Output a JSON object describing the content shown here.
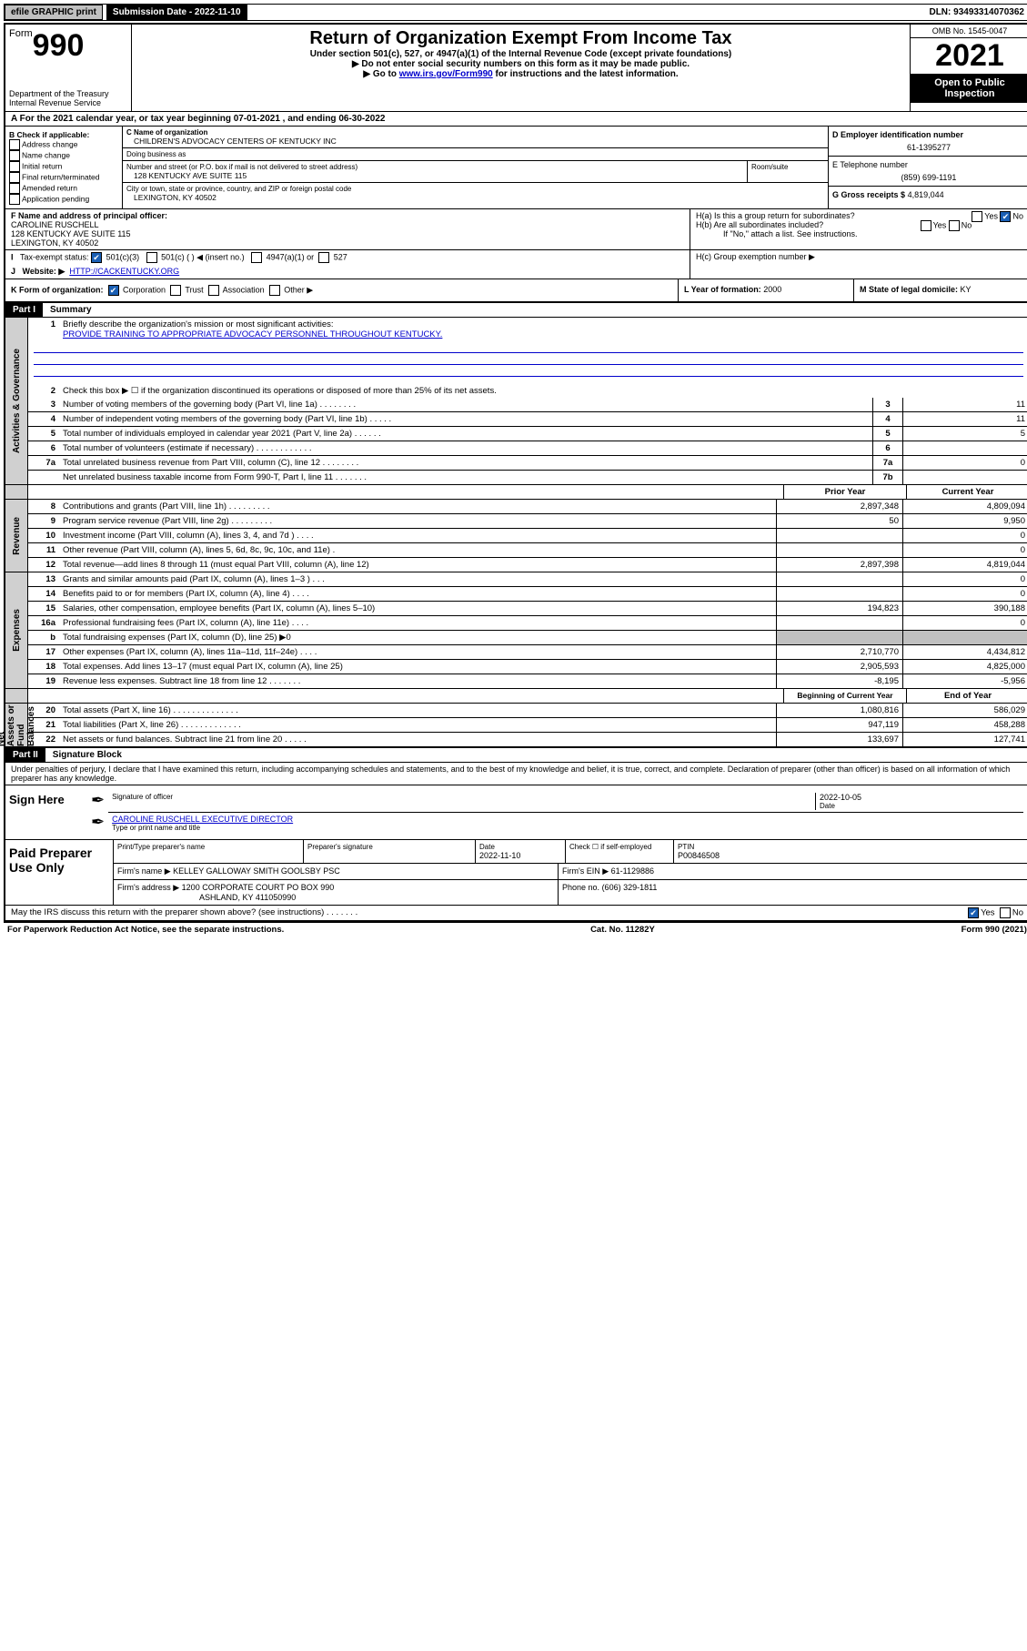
{
  "topbar": {
    "efile": "efile GRAPHIC print",
    "submission_label": "Submission Date - 2022-11-10",
    "dln": "DLN: 93493314070362"
  },
  "header": {
    "form_word": "Form",
    "form_no": "990",
    "dept": "Department of the Treasury",
    "irs": "Internal Revenue Service",
    "title": "Return of Organization Exempt From Income Tax",
    "sub": "Under section 501(c), 527, or 4947(a)(1) of the Internal Revenue Code (except private foundations)",
    "line1": "▶ Do not enter social security numbers on this form as it may be made public.",
    "line2a": "▶ Go to ",
    "line2_link": "www.irs.gov/Form990",
    "line2b": " for instructions and the latest information.",
    "omb": "OMB No. 1545-0047",
    "year": "2021",
    "open": "Open to Public Inspection"
  },
  "A": {
    "text": "A For the 2021 calendar year, or tax year beginning 07-01-2021   , and ending 06-30-2022"
  },
  "B": {
    "hdr": "B Check if applicable:",
    "items": [
      "Address change",
      "Name change",
      "Initial return",
      "Final return/terminated",
      "Amended return",
      "Application pending"
    ]
  },
  "C": {
    "name_lbl": "C Name of organization",
    "name": "CHILDREN'S ADVOCACY CENTERS OF KENTUCKY INC",
    "dba_lbl": "Doing business as",
    "dba": "",
    "addr_lbl": "Number and street (or P.O. box if mail is not delivered to street address)",
    "room_lbl": "Room/suite",
    "addr": "128 KENTUCKY AVE SUITE 115",
    "city_lbl": "City or town, state or province, country, and ZIP or foreign postal code",
    "city": "LEXINGTON, KY  40502"
  },
  "D": {
    "lbl": "D Employer identification number",
    "val": "61-1395277"
  },
  "E": {
    "lbl": "E Telephone number",
    "val": "(859) 699-1191"
  },
  "G": {
    "lbl": "G Gross receipts $",
    "val": "4,819,044"
  },
  "F": {
    "lbl": "F  Name and address of principal officer:",
    "name": "CAROLINE RUSCHELL",
    "addr": "128 KENTUCKY AVE SUITE 115",
    "city": "LEXINGTON, KY  40502"
  },
  "H": {
    "a": "H(a)  Is this a group return for subordinates?",
    "b": "H(b)  Are all subordinates included?",
    "b_note": "If \"No,\" attach a list. See instructions.",
    "c": "H(c)  Group exemption number ▶",
    "yes": "Yes",
    "no": "No"
  },
  "I": {
    "lbl": "Tax-exempt status:",
    "c3": "501(c)(3)",
    "c": "501(c) (   ) ◀ (insert no.)",
    "a1": "4947(a)(1) or",
    "s527": "527"
  },
  "J": {
    "lbl": "Website: ▶",
    "val": "HTTP://CACKENTUCKY.ORG"
  },
  "K": {
    "lbl": "K Form of organization:",
    "corp": "Corporation",
    "trust": "Trust",
    "assoc": "Association",
    "other": "Other ▶"
  },
  "L": {
    "lbl": "L Year of formation:",
    "val": "2000"
  },
  "M": {
    "lbl": "M State of legal domicile:",
    "val": "KY"
  },
  "part1": {
    "hdr": "Part I",
    "title": "Summary",
    "q1": "Briefly describe the organization's mission or most significant activities:",
    "q1_ans": "PROVIDE TRAINING TO APPROPRIATE ADVOCACY PERSONNEL THROUGHOUT KENTUCKY.",
    "q2": "Check this box ▶ ☐  if the organization discontinued its operations or disposed of more than 25% of its net assets.",
    "rows_gov": [
      {
        "n": "3",
        "t": "Number of voting members of the governing body (Part VI, line 1a)   .    .    .    .    .    .    .    .",
        "b": "3",
        "v": "11"
      },
      {
        "n": "4",
        "t": "Number of independent voting members of the governing body (Part VI, line 1b)   .    .    .    .    .",
        "b": "4",
        "v": "11"
      },
      {
        "n": "5",
        "t": "Total number of individuals employed in calendar year 2021 (Part V, line 2a)   .    .    .    .    .    .",
        "b": "5",
        "v": "5"
      },
      {
        "n": "6",
        "t": "Total number of volunteers (estimate if necessary)   .    .    .    .    .    .    .    .    .    .    .    .",
        "b": "6",
        "v": ""
      },
      {
        "n": "7a",
        "t": "Total unrelated business revenue from Part VIII, column (C), line 12   .    .    .    .    .    .    .    .",
        "b": "7a",
        "v": "0"
      },
      {
        "n": "",
        "t": "Net unrelated business taxable income from Form 990-T, Part I, line 11   .    .    .    .    .    .    .",
        "b": "7b",
        "v": ""
      }
    ],
    "prior_hdr": "Prior Year",
    "curr_hdr": "Current Year",
    "rows_rev": [
      {
        "n": "8",
        "t": "Contributions and grants (Part VIII, line 1h)   .    .    .    .    .    .    .    .    .",
        "p": "2,897,348",
        "c": "4,809,094"
      },
      {
        "n": "9",
        "t": "Program service revenue (Part VIII, line 2g)   .    .    .    .    .    .    .    .    .",
        "p": "50",
        "c": "9,950"
      },
      {
        "n": "10",
        "t": "Investment income (Part VIII, column (A), lines 3, 4, and 7d )   .    .    .    .",
        "p": "",
        "c": "0"
      },
      {
        "n": "11",
        "t": "Other revenue (Part VIII, column (A), lines 5, 6d, 8c, 9c, 10c, and 11e)   .",
        "p": "",
        "c": "0"
      },
      {
        "n": "12",
        "t": "Total revenue—add lines 8 through 11 (must equal Part VIII, column (A), line 12)",
        "p": "2,897,398",
        "c": "4,819,044"
      }
    ],
    "rows_exp": [
      {
        "n": "13",
        "t": "Grants and similar amounts paid (Part IX, column (A), lines 1–3 )   .    .    .",
        "p": "",
        "c": "0"
      },
      {
        "n": "14",
        "t": "Benefits paid to or for members (Part IX, column (A), line 4)   .    .    .    .",
        "p": "",
        "c": "0"
      },
      {
        "n": "15",
        "t": "Salaries, other compensation, employee benefits (Part IX, column (A), lines 5–10)",
        "p": "194,823",
        "c": "390,188"
      },
      {
        "n": "16a",
        "t": "Professional fundraising fees (Part IX, column (A), line 11e)   .    .    .    .",
        "p": "",
        "c": "0"
      },
      {
        "n": "b",
        "t": "Total fundraising expenses (Part IX, column (D), line 25) ▶0",
        "p": "grey",
        "c": "grey"
      },
      {
        "n": "17",
        "t": "Other expenses (Part IX, column (A), lines 11a–11d, 11f–24e)   .    .    .    .",
        "p": "2,710,770",
        "c": "4,434,812"
      },
      {
        "n": "18",
        "t": "Total expenses. Add lines 13–17 (must equal Part IX, column (A), line 25)",
        "p": "2,905,593",
        "c": "4,825,000"
      },
      {
        "n": "19",
        "t": "Revenue less expenses. Subtract line 18 from line 12   .    .    .    .    .    .    .",
        "p": "-8,195",
        "c": "-5,956"
      }
    ],
    "boy_hdr": "Beginning of Current Year",
    "eoy_hdr": "End of Year",
    "rows_net": [
      {
        "n": "20",
        "t": "Total assets (Part X, line 16)   .    .    .    .    .    .    .    .    .    .    .    .    .    .",
        "p": "1,080,816",
        "c": "586,029"
      },
      {
        "n": "21",
        "t": "Total liabilities (Part X, line 26)   .    .    .    .    .    .    .    .    .    .    .    .    .",
        "p": "947,119",
        "c": "458,288"
      },
      {
        "n": "22",
        "t": "Net assets or fund balances. Subtract line 21 from line 20   .    .    .    .    .",
        "p": "133,697",
        "c": "127,741"
      }
    ]
  },
  "tabs": {
    "gov": "Activities & Governance",
    "rev": "Revenue",
    "exp": "Expenses",
    "net": "Net Assets or Fund Balances"
  },
  "part2": {
    "hdr": "Part II",
    "title": "Signature Block",
    "decl": "Under penalties of perjury, I declare that I have examined this return, including accompanying schedules and statements, and to the best of my knowledge and belief, it is true, correct, and complete. Declaration of preparer (other than officer) is based on all information of which preparer has any knowledge."
  },
  "sign": {
    "here": "Sign Here",
    "sig_lbl": "Signature of officer",
    "date": "2022-10-05",
    "date_lbl": "Date",
    "name": "CAROLINE RUSCHELL  EXECUTIVE DIRECTOR",
    "name_lbl": "Type or print name and title"
  },
  "prep": {
    "hdr": "Paid Preparer Use Only",
    "pt_lbl": "Print/Type preparer's name",
    "ps_lbl": "Preparer's signature",
    "d_lbl": "Date",
    "d_val": "2022-11-10",
    "chk_lbl": "Check ☐ if self-employed",
    "ptin_lbl": "PTIN",
    "ptin": "P00846508",
    "firm_lbl": "Firm's name    ▶",
    "firm": "KELLEY GALLOWAY SMITH GOOLSBY PSC",
    "ein_lbl": "Firm's EIN ▶",
    "ein": "61-1129886",
    "addr_lbl": "Firm's address ▶",
    "addr1": "1200 CORPORATE COURT PO BOX 990",
    "addr2": "ASHLAND, KY  411050990",
    "ph_lbl": "Phone no.",
    "ph": "(606) 329-1811"
  },
  "may": {
    "q": "May the IRS discuss this return with the preparer shown above? (see instructions)   .    .    .    .    .    .    .",
    "yes": "Yes",
    "no": "No"
  },
  "footer": {
    "left": "For Paperwork Reduction Act Notice, see the separate instructions.",
    "mid": "Cat. No. 11282Y",
    "right": "Form 990 (2021)"
  }
}
